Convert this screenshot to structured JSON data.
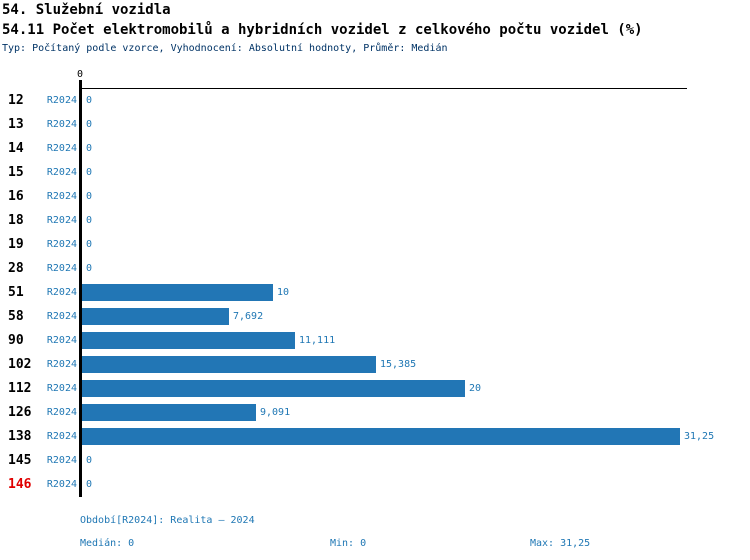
{
  "header": {
    "section_title": "54. Služební vozidla",
    "indicator_title": "54.11 Počet elektromobilů a hybridních vozidel z celkového počtu vozidel (%)",
    "meta": "Typ: Počítaný podle vzorce, Vyhodnocení: Absolutní hodnoty, Průměr: Medián"
  },
  "chart_data": {
    "type": "bar",
    "orientation": "horizontal",
    "title": "54.11 Počet elektromobilů a hybridních vozidel z celkového počtu vozidel (%)",
    "series_name": "R2024",
    "axis_origin_label": "0",
    "xlim": [
      0,
      31.25
    ],
    "grid": false,
    "legend_position": "none",
    "categories": [
      "12",
      "13",
      "14",
      "15",
      "16",
      "18",
      "19",
      "28",
      "51",
      "58",
      "90",
      "102",
      "112",
      "126",
      "138",
      "145",
      "146"
    ],
    "values": [
      0,
      0,
      0,
      0,
      0,
      0,
      0,
      0,
      10,
      7.692,
      11.111,
      15.385,
      20,
      9.091,
      31.25,
      0,
      0
    ],
    "value_labels": [
      "0",
      "0",
      "0",
      "0",
      "0",
      "0",
      "0",
      "0",
      "10",
      "7,692",
      "11,111",
      "15,385",
      "20",
      "9,091",
      "31,25",
      "0",
      "0"
    ],
    "highlighted_category": "146",
    "bar_color": "#2276b5"
  },
  "footer": {
    "period": "Období[R2024]: Realita – 2024",
    "median": "Medián: 0",
    "min": "Min: 0",
    "max": "Max: 31,25"
  },
  "colors": {
    "bar": "#2276b5",
    "accent_text": "#1f77b4",
    "highlight": "#e00000",
    "meta_text": "#003366"
  }
}
